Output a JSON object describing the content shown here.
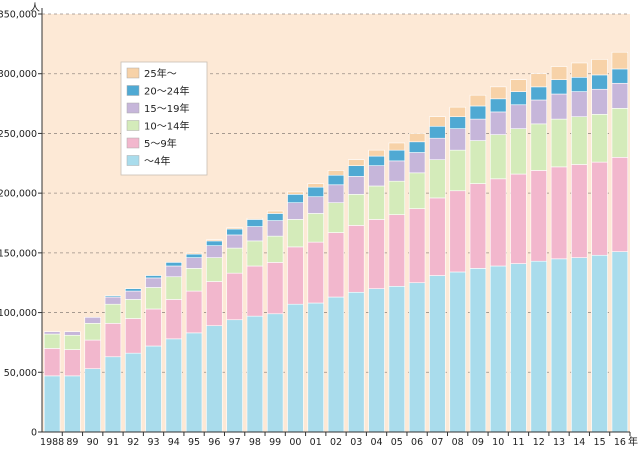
{
  "chart_data": {
    "type": "bar",
    "stacked": true,
    "y_unit": "人",
    "x_unit": "年",
    "ylim": [
      0,
      350000
    ],
    "yticks": [
      0,
      50000,
      100000,
      150000,
      200000,
      250000,
      300000,
      350000
    ],
    "ytick_labels": [
      "0",
      "50,000",
      "100,000",
      "150,000",
      "200,000",
      "250,000",
      "300,000",
      "350,000"
    ],
    "grid": "horizontal dashed",
    "legend_position": "top-left",
    "legend_order": [
      5,
      4,
      3,
      2,
      1,
      0
    ],
    "categories": [
      "1988",
      "89",
      "90",
      "91",
      "92",
      "93",
      "94",
      "95",
      "96",
      "97",
      "98",
      "99",
      "00",
      "01",
      "02",
      "03",
      "04",
      "05",
      "06",
      "07",
      "08",
      "09",
      "10",
      "11",
      "12",
      "13",
      "14",
      "15",
      "16"
    ],
    "series": [
      {
        "name": "〜4年",
        "color": "#a9dcec",
        "values": [
          47000,
          47000,
          53000,
          63000,
          66000,
          72000,
          78000,
          83000,
          89000,
          94000,
          97000,
          99000,
          107000,
          108000,
          113000,
          117000,
          120000,
          122000,
          125000,
          131000,
          134000,
          137000,
          139000,
          141000,
          143000,
          145000,
          146000,
          148000,
          151000
        ]
      },
      {
        "name": "5〜9年",
        "color": "#f2b7cd",
        "values": [
          23000,
          22000,
          24000,
          28000,
          29000,
          31000,
          33000,
          35000,
          37000,
          39000,
          42000,
          43000,
          48000,
          51000,
          54000,
          56000,
          58000,
          60000,
          62000,
          65000,
          68000,
          71000,
          73000,
          75000,
          76000,
          77000,
          78000,
          78000,
          79000
        ]
      },
      {
        "name": "10〜14年",
        "color": "#d4ebba",
        "values": [
          12000,
          12000,
          14000,
          16000,
          16000,
          18000,
          19000,
          19000,
          20000,
          21000,
          21000,
          22000,
          23000,
          24000,
          25000,
          26000,
          28000,
          28000,
          30000,
          32000,
          34000,
          36000,
          37000,
          38000,
          39000,
          40000,
          40000,
          40000,
          41000
        ]
      },
      {
        "name": "15〜19年",
        "color": "#c6b6da",
        "values": [
          2000,
          3000,
          5000,
          6000,
          7000,
          8000,
          9000,
          9000,
          10000,
          11000,
          12000,
          13000,
          14000,
          14000,
          15000,
          15000,
          17000,
          17000,
          17000,
          18000,
          18000,
          18000,
          19000,
          20000,
          20000,
          21000,
          21000,
          21000,
          21000
        ]
      },
      {
        "name": "20〜24年",
        "color": "#4fa9d3",
        "values": [
          0,
          0,
          0,
          1000,
          2000,
          2000,
          3000,
          3000,
          4000,
          5000,
          6000,
          6000,
          7000,
          8000,
          8000,
          9000,
          8000,
          9000,
          9000,
          10000,
          10000,
          11000,
          11000,
          11000,
          11000,
          12000,
          12000,
          12000,
          12000
        ]
      },
      {
        "name": "25年〜",
        "color": "#f7d2a8",
        "values": [
          0,
          0,
          0,
          0,
          0,
          0,
          0,
          1000,
          1000,
          1000,
          1000,
          2000,
          2000,
          3000,
          4000,
          5000,
          5000,
          6000,
          7000,
          8000,
          8000,
          9000,
          10000,
          10000,
          11000,
          11000,
          12000,
          13000,
          14000
        ]
      }
    ]
  }
}
